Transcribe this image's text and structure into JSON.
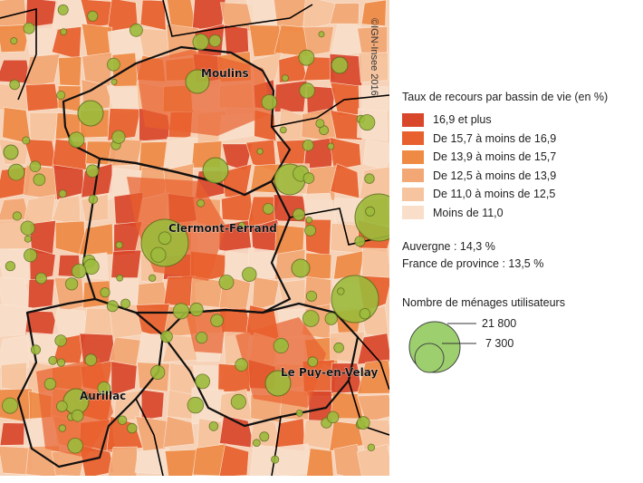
{
  "map": {
    "cities": [
      "Moulins",
      "Clermont-Ferrand",
      "Aurillac",
      "Le Puy-en-Velay"
    ],
    "copyright": "©IGN-Insee 2016",
    "colors": {
      "region_border": "#000000",
      "dept_border": "#111111",
      "bubble_fill": "#9dbb3c",
      "bubble_stroke": "#5f6e1e"
    }
  },
  "legend": {
    "title": "Taux de recours par bassin de vie (en %)",
    "classes": [
      {
        "label": "16,9 et plus",
        "color": "#d9472b"
      },
      {
        "label": "De 15,7 à moins de 16,9",
        "color": "#e8602d"
      },
      {
        "label": "De 13,9 à moins de 15,7",
        "color": "#ef8a45"
      },
      {
        "label": "De 12,5 à moins de 13,9",
        "color": "#f3a774"
      },
      {
        "label": "De 11,0 à moins de 12,5",
        "color": "#f6c49e"
      },
      {
        "label": "Moins de 11,0",
        "color": "#f9dfca"
      }
    ],
    "stats": {
      "auvergne": "Auvergne : 14,3 %",
      "province": "France de province : 13,5 %"
    },
    "size_title": "Nombre de ménages utilisateurs",
    "size_values": {
      "large": "21 800",
      "small": "7 300"
    }
  }
}
